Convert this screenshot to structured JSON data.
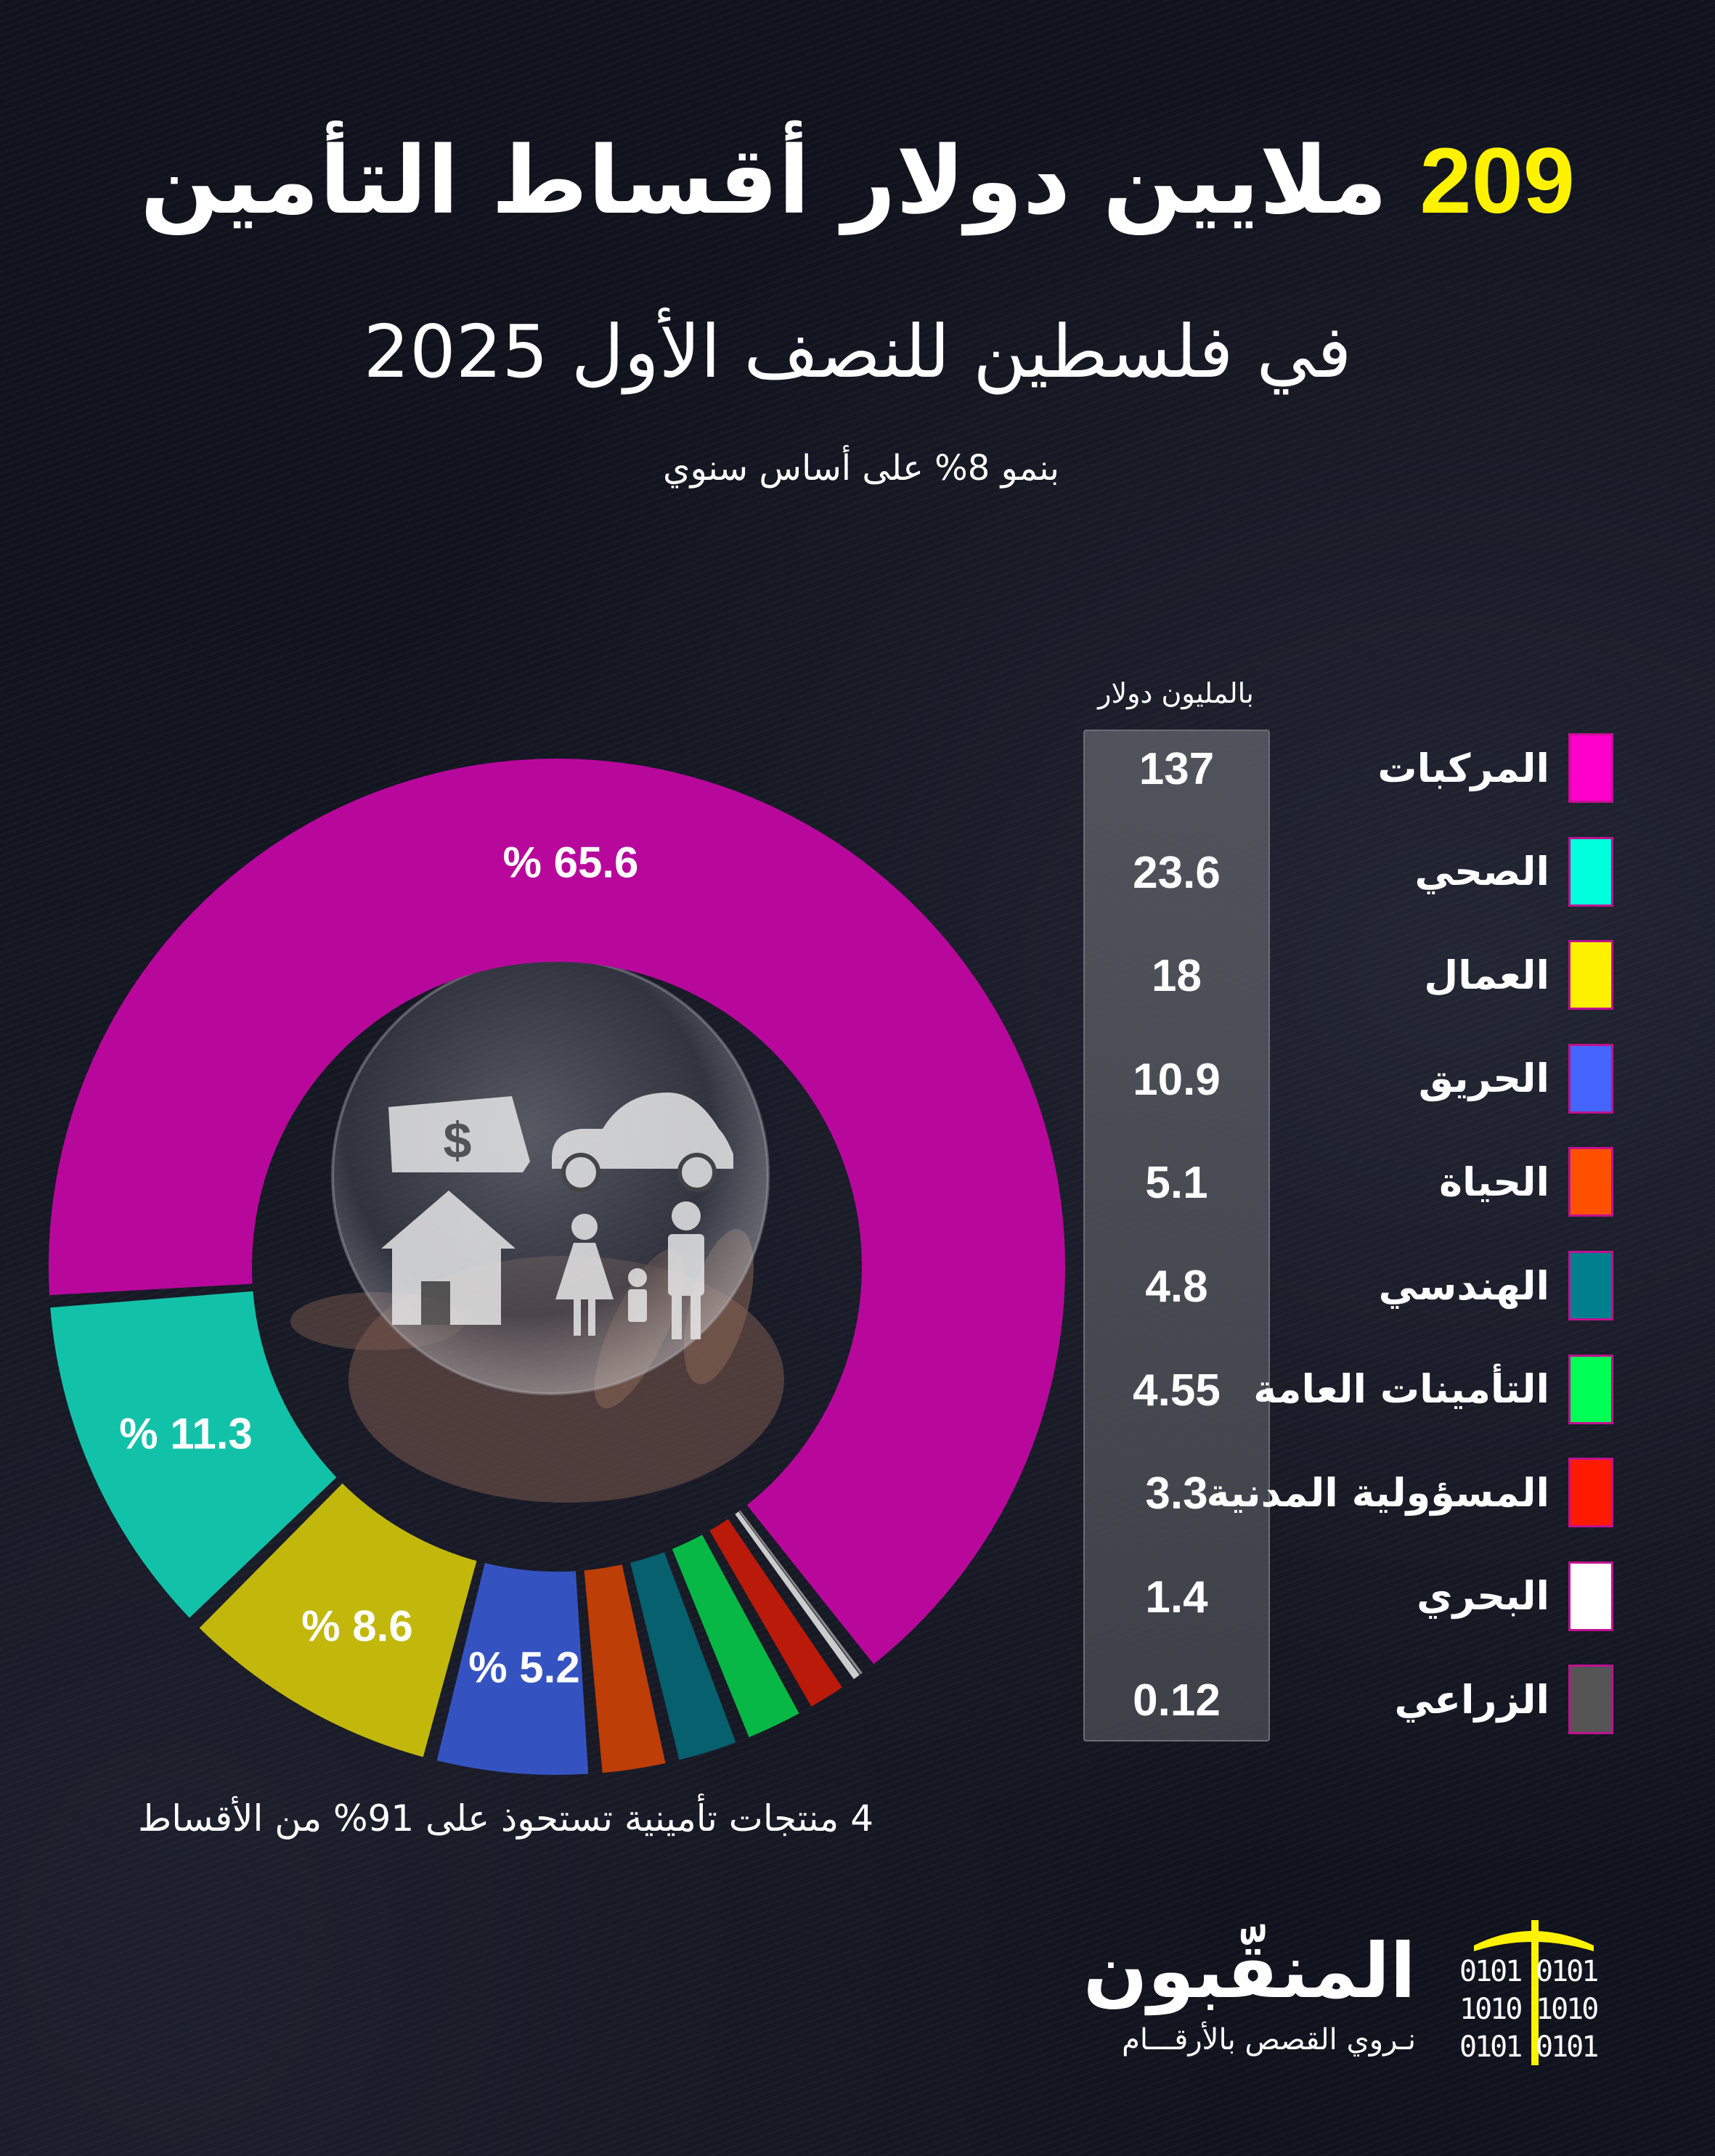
{
  "header": {
    "title_number": "209",
    "title_text": "ملايين دولار أقساط التأمين",
    "subtitle": "في فلسطين للنصف الأول 2025",
    "growth": "بنمو 8% على أساس سنوي"
  },
  "unit_label": "بالمليون دولار",
  "footnote": "4 منتجات تأمينية تستحوذ على 91% من الأقساط",
  "logo": {
    "name": "المنقّبون",
    "tagline": "نـروي القصص بالأرقـــام",
    "binary_left": [
      "0101",
      "1010",
      "0101"
    ],
    "binary_right": [
      "0101",
      "1010",
      "0101"
    ],
    "accent": "#fff200"
  },
  "chart_data": {
    "type": "pie",
    "variant": "donut",
    "unit": "بالمليون دولار",
    "categories": [
      "المركبات",
      "الصحي",
      "العمال",
      "الحريق",
      "الحياة",
      "الهندسي",
      "التأمينات العامة",
      "المسؤولية المدنية",
      "البحري",
      "الزراعي"
    ],
    "values": [
      137,
      23.6,
      18,
      10.9,
      5.1,
      4.8,
      4.55,
      3.3,
      1.4,
      0.12
    ],
    "value_labels": [
      "137",
      "23.6",
      "18",
      "10.9",
      "5.1",
      "4.8",
      "4.55",
      "3.3",
      "1.4",
      "0.12"
    ],
    "percent_labels": [
      "% 65.6",
      "% 11.3",
      "% 8.6",
      "% 5.2"
    ],
    "legend_colors": [
      "#ff00cc",
      "#00ffdd",
      "#fff200",
      "#4466ff",
      "#ff5000",
      "#007f8f",
      "#00ff55",
      "#ff1a00",
      "#ffffff",
      "#555555"
    ],
    "slice_colors": [
      "#b8089c",
      "#12c2a8",
      "#c2b80c",
      "#3553c0",
      "#be3e08",
      "#06606e",
      "#07b846",
      "#ba1a0a",
      "#cccccc",
      "#888888"
    ],
    "legend_placement": "right"
  }
}
